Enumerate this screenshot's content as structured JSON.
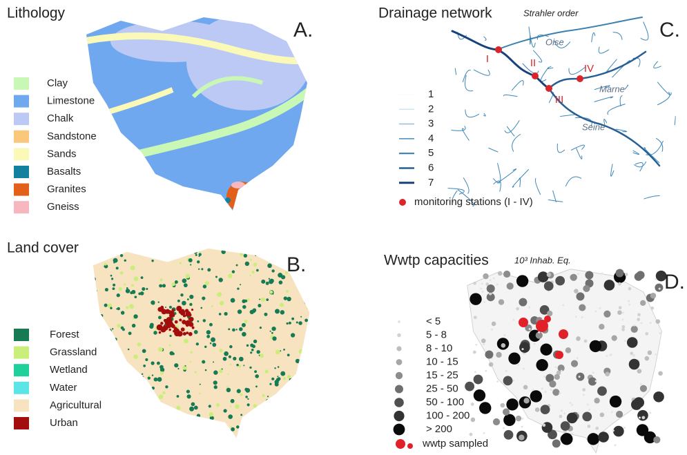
{
  "panels": [
    {
      "title": "Lithology",
      "letter": "A.",
      "legend": [
        {
          "label": "Clay",
          "color": "#c9f7b5"
        },
        {
          "label": "Limestone",
          "color": "#6fa8ef"
        },
        {
          "label": "Chalk",
          "color": "#bcc9f4"
        },
        {
          "label": "Sandstone",
          "color": "#fbc77a"
        },
        {
          "label": "Sands",
          "color": "#fbf9b8"
        },
        {
          "label": "Basalts",
          "color": "#13809e"
        },
        {
          "label": "Granites",
          "color": "#e2601a"
        },
        {
          "label": "Gneiss",
          "color": "#f7b7bf"
        }
      ]
    },
    {
      "title": "Land cover",
      "letter": "B.",
      "legend": [
        {
          "label": "Forest",
          "color": "#167a52"
        },
        {
          "label": "Grassland",
          "color": "#c9ef7a"
        },
        {
          "label": "Wetland",
          "color": "#1fd09a"
        },
        {
          "label": "Water",
          "color": "#5ce5e7"
        },
        {
          "label": "Agricultural",
          "color": "#f8e3c0"
        },
        {
          "label": "Urban",
          "color": "#a40d0d"
        }
      ]
    },
    {
      "title": "Drainage network",
      "subtitle": "Strahler order",
      "letter": "C.",
      "legend": [
        {
          "label": "1",
          "color": "#eef5fa"
        },
        {
          "label": "2",
          "color": "#b7d8ea"
        },
        {
          "label": "3",
          "color": "#86bcd8"
        },
        {
          "label": "4",
          "color": "#5a9cc4"
        },
        {
          "label": "5",
          "color": "#3a7fae"
        },
        {
          "label": "6",
          "color": "#255f95"
        },
        {
          "label": "7",
          "color": "#17407c"
        }
      ],
      "stations_label": "monitoring stations (I - IV)",
      "stations": [
        "I",
        "II",
        "III",
        "IV"
      ],
      "rivers": [
        "Oise",
        "Marne",
        "Seine"
      ]
    },
    {
      "title": "Wwtp capacities",
      "subtitle": "10³ Inhab. Eq.",
      "letter": "D.",
      "legend": [
        {
          "label": "< 5",
          "color": "#e4e4e4"
        },
        {
          "label": "5 - 8",
          "color": "#d2d2d2"
        },
        {
          "label": "8 - 10",
          "color": "#bdbdbd"
        },
        {
          "label": "10 - 15",
          "color": "#a6a6a6"
        },
        {
          "label": "15 - 25",
          "color": "#8c8c8c"
        },
        {
          "label": "25 - 50",
          "color": "#6f6f6f"
        },
        {
          "label": "50 - 100",
          "color": "#505050"
        },
        {
          "label": "100 - 200",
          "color": "#333333"
        },
        {
          "label": "> 200",
          "color": "#0a0a0a"
        }
      ],
      "sampled_label": "wwtp sampled"
    }
  ]
}
